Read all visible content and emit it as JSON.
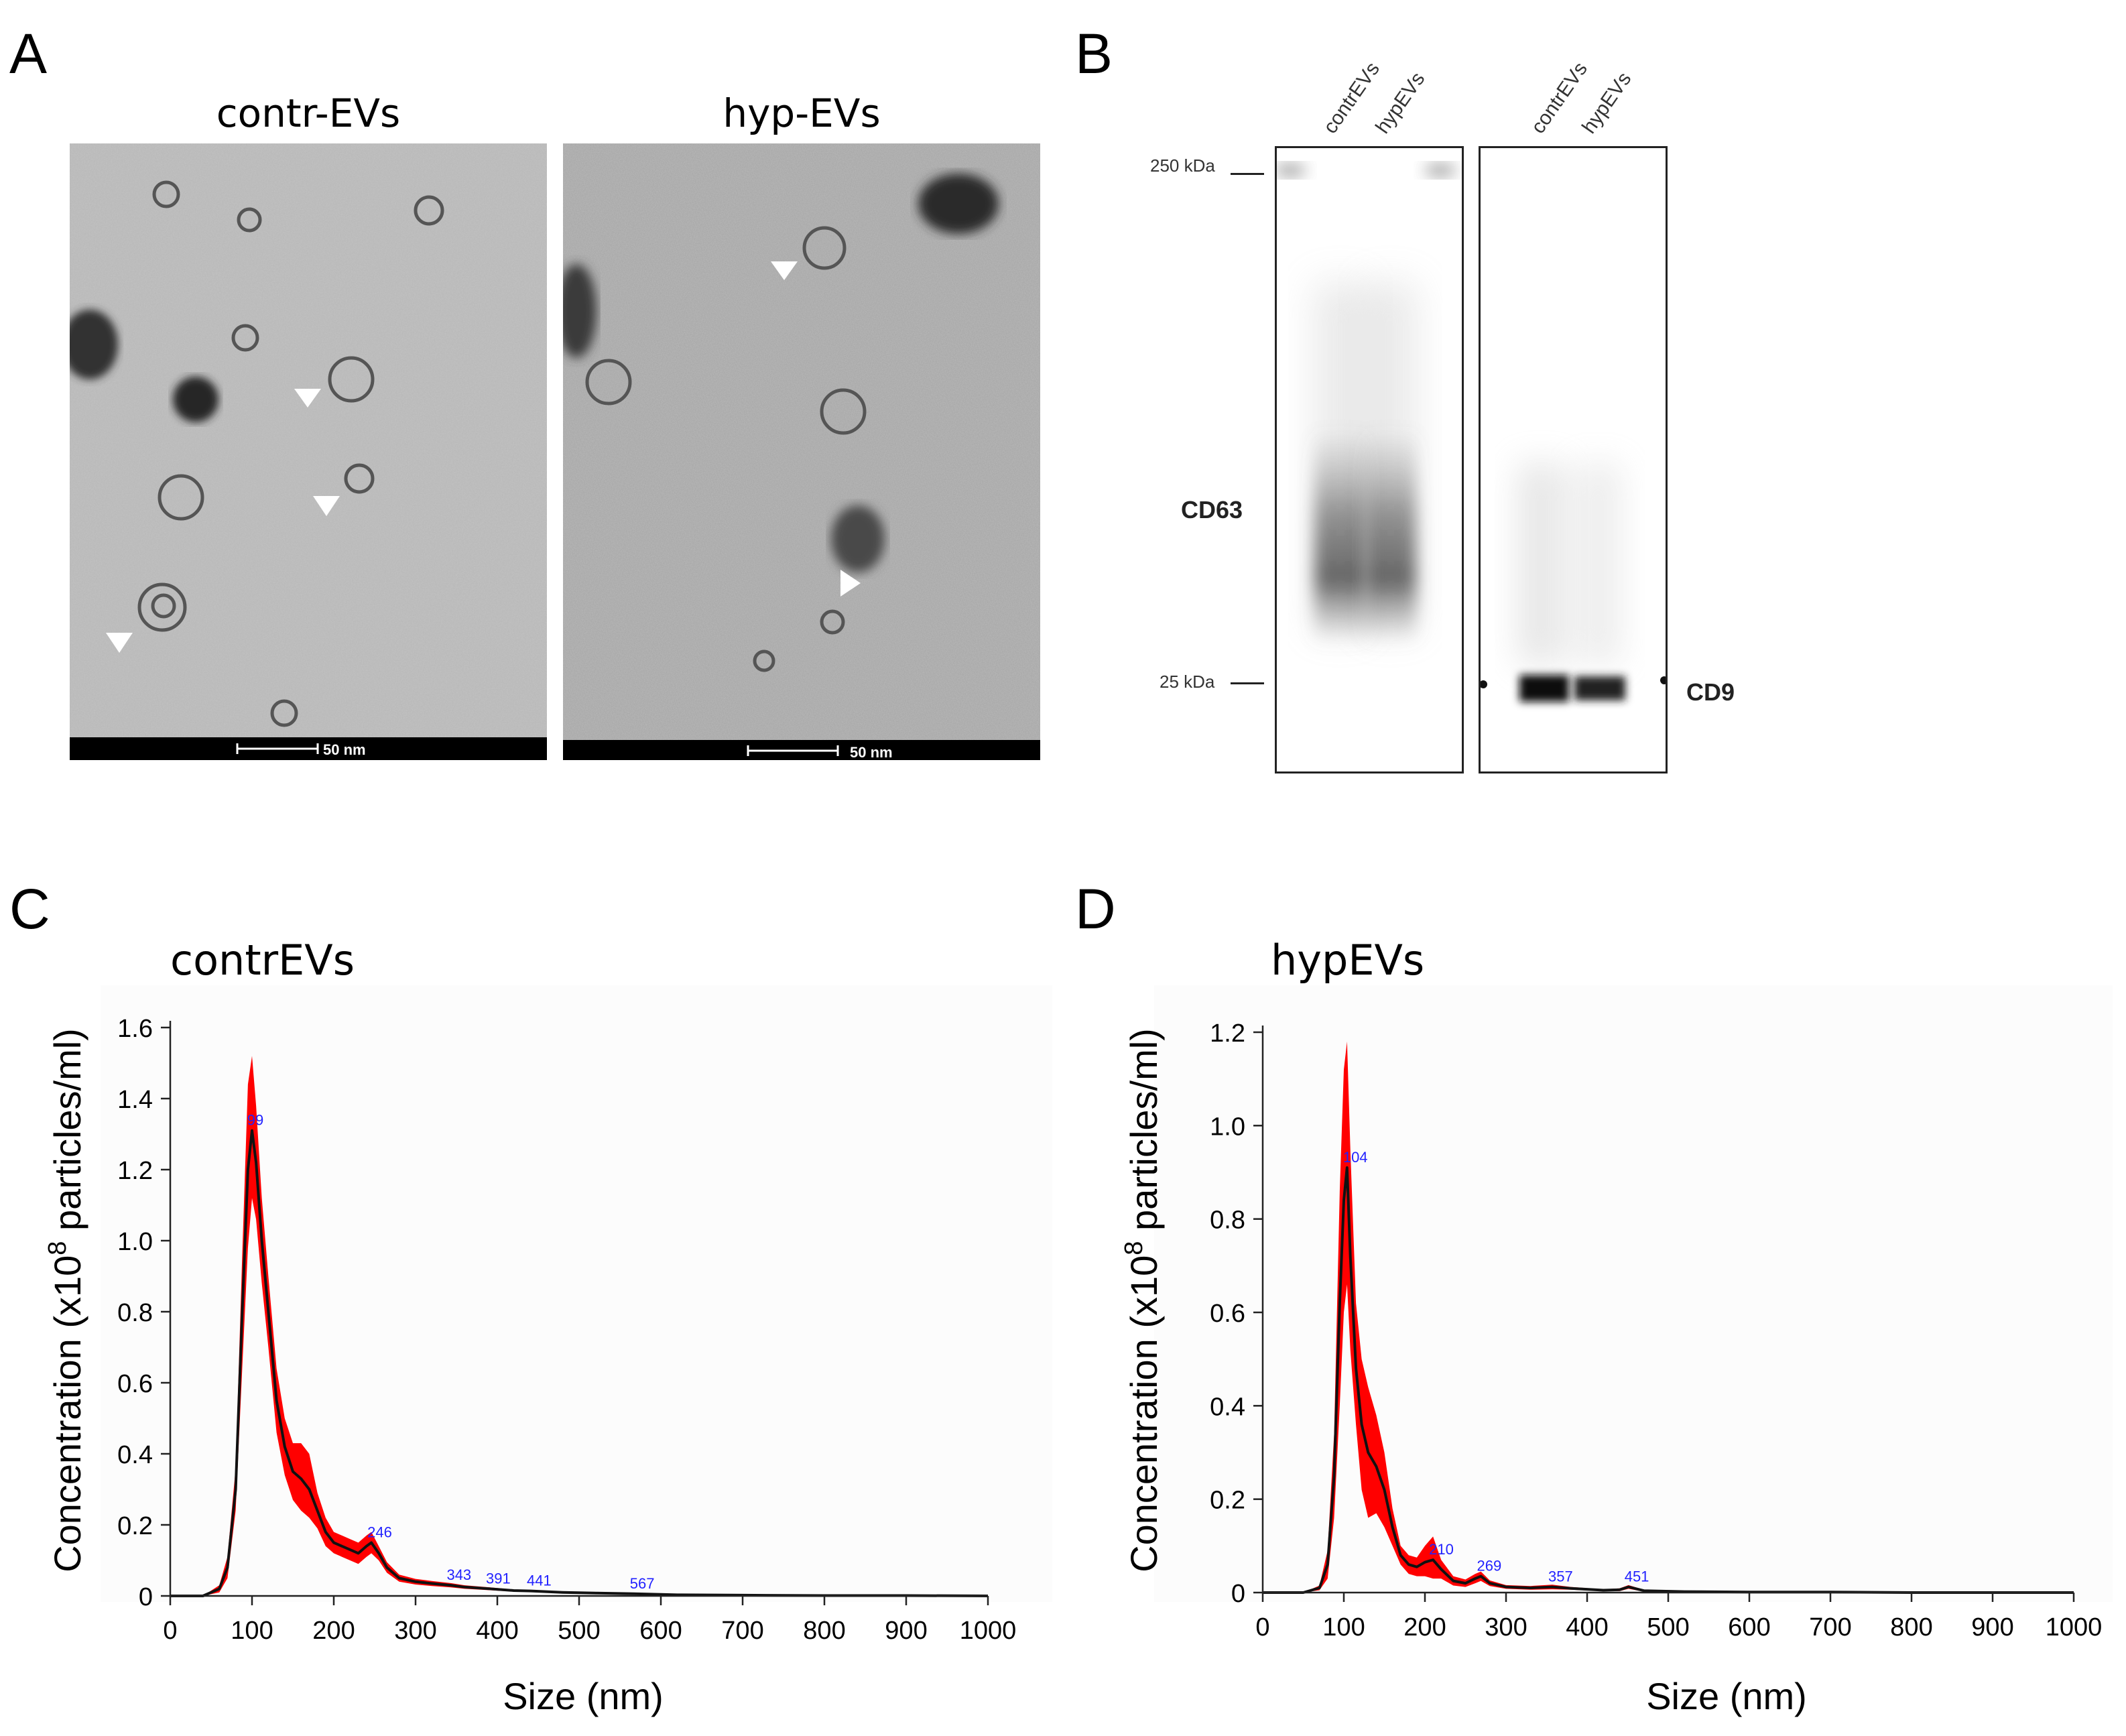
{
  "panels": {
    "A": {
      "letter": "A",
      "images": [
        {
          "title": "contr-EVs",
          "scale_bar": "50 nm"
        },
        {
          "title": "hyp-EVs",
          "scale_bar": "50 nm"
        }
      ]
    },
    "B": {
      "letter": "B",
      "lanes_left": [
        "contrEVs",
        "hypEVs"
      ],
      "lanes_right": [
        "contrEVs",
        "hypEVs"
      ],
      "markers": [
        "250 kDa",
        "25 kDa"
      ],
      "proteins": [
        "CD63",
        "CD9"
      ]
    },
    "C": {
      "letter": "C",
      "title": "contrEVs"
    },
    "D": {
      "letter": "D",
      "title": "hypEVs"
    }
  },
  "chart_data": [
    {
      "type": "line",
      "title": "contrEVs",
      "xlabel": "Size (nm)",
      "ylabel": "Concentration (x10^8 particles/ml)",
      "xlim": [
        0,
        1000
      ],
      "ylim": [
        0,
        1.6
      ],
      "xticks": [
        0,
        100,
        200,
        300,
        400,
        500,
        600,
        700,
        800,
        900,
        1000
      ],
      "yticks": [
        "0",
        "0.2",
        "0.4",
        "0.6",
        "0.8",
        "1.0",
        "1.2",
        "1.4",
        "1.6"
      ],
      "series": [
        {
          "x": [
            0,
            40,
            60,
            70,
            80,
            88,
            95,
            100,
            105,
            112,
            120,
            130,
            140,
            150,
            160,
            170,
            180,
            190,
            200,
            210,
            220,
            230,
            240,
            246,
            255,
            265,
            280,
            300,
            320,
            343,
            360,
            391,
            420,
            441,
            480,
            520,
            567,
            620,
            700,
            800,
            900,
            1000
          ],
          "y": [
            0,
            0,
            0.02,
            0.08,
            0.3,
            0.8,
            1.2,
            1.31,
            1.22,
            1.0,
            0.8,
            0.55,
            0.42,
            0.35,
            0.33,
            0.3,
            0.24,
            0.18,
            0.15,
            0.14,
            0.13,
            0.12,
            0.14,
            0.15,
            0.12,
            0.08,
            0.05,
            0.04,
            0.035,
            0.03,
            0.025,
            0.02,
            0.015,
            0.014,
            0.01,
            0.008,
            0.006,
            0.003,
            0.002,
            0.001,
            0.001,
            0
          ],
          "y_upper": [
            0,
            0,
            0.03,
            0.11,
            0.36,
            0.96,
            1.44,
            1.52,
            1.38,
            1.12,
            0.9,
            0.64,
            0.5,
            0.43,
            0.43,
            0.4,
            0.29,
            0.22,
            0.18,
            0.17,
            0.16,
            0.15,
            0.17,
            0.18,
            0.14,
            0.095,
            0.06,
            0.048,
            0.042,
            0.036,
            0.03,
            0.024,
            0.018,
            0.017,
            0.012,
            0.01,
            0.008,
            0.004,
            0.003,
            0.002,
            0.002,
            0
          ],
          "y_lower": [
            0,
            0,
            0.01,
            0.05,
            0.24,
            0.64,
            0.98,
            1.12,
            1.06,
            0.88,
            0.7,
            0.46,
            0.34,
            0.27,
            0.24,
            0.22,
            0.19,
            0.14,
            0.12,
            0.11,
            0.1,
            0.09,
            0.11,
            0.12,
            0.1,
            0.065,
            0.04,
            0.032,
            0.028,
            0.024,
            0.02,
            0.016,
            0.012,
            0.011,
            0.008,
            0.006,
            0.004,
            0.002,
            0.001,
            0,
            0,
            0
          ]
        }
      ],
      "peak_labels": [
        {
          "x": 99,
          "y": 1.31,
          "label": "99"
        },
        {
          "x": 246,
          "y": 0.15,
          "label": "246"
        },
        {
          "x": 343,
          "y": 0.03,
          "label": "343"
        },
        {
          "x": 391,
          "y": 0.02,
          "label": "391"
        },
        {
          "x": 441,
          "y": 0.014,
          "label": "441"
        },
        {
          "x": 567,
          "y": 0.006,
          "label": "567"
        }
      ],
      "line_color": "#111111",
      "band_color": "#ff0000",
      "label_color": "#2222ff"
    },
    {
      "type": "line",
      "title": "hypEVs",
      "xlabel": "Size (nm)",
      "ylabel": "Concentration (x10^8 particles/ml)",
      "xlim": [
        0,
        1000
      ],
      "ylim": [
        0,
        1.2
      ],
      "xticks": [
        0,
        100,
        200,
        300,
        400,
        500,
        600,
        700,
        800,
        900,
        1000
      ],
      "yticks": [
        "0",
        "0.2",
        "0.4",
        "0.6",
        "0.8",
        "1.0",
        "1.2"
      ],
      "series": [
        {
          "x": [
            0,
            50,
            70,
            80,
            88,
            95,
            100,
            104,
            108,
            115,
            122,
            130,
            140,
            150,
            160,
            170,
            180,
            190,
            200,
            210,
            220,
            235,
            250,
            262,
            269,
            280,
            300,
            330,
            357,
            380,
            420,
            440,
            451,
            470,
            520,
            600,
            700,
            800,
            900,
            1000
          ],
          "y": [
            0,
            0,
            0.01,
            0.06,
            0.25,
            0.62,
            0.84,
            0.91,
            0.72,
            0.48,
            0.36,
            0.3,
            0.27,
            0.22,
            0.14,
            0.08,
            0.06,
            0.055,
            0.065,
            0.07,
            0.05,
            0.025,
            0.02,
            0.03,
            0.035,
            0.02,
            0.012,
            0.01,
            0.012,
            0.009,
            0.005,
            0.006,
            0.012,
            0.004,
            0.002,
            0.001,
            0.001,
            0,
            0,
            0
          ],
          "y_upper": [
            0,
            0,
            0.015,
            0.09,
            0.34,
            0.86,
            1.12,
            1.18,
            0.95,
            0.62,
            0.5,
            0.44,
            0.38,
            0.3,
            0.18,
            0.1,
            0.08,
            0.075,
            0.1,
            0.12,
            0.07,
            0.035,
            0.028,
            0.04,
            0.045,
            0.026,
            0.016,
            0.014,
            0.017,
            0.012,
            0.007,
            0.009,
            0.016,
            0.006,
            0.003,
            0.002,
            0.002,
            0.001,
            0.001,
            0
          ],
          "y_lower": [
            0,
            0,
            0.005,
            0.03,
            0.16,
            0.4,
            0.6,
            0.66,
            0.52,
            0.36,
            0.22,
            0.16,
            0.17,
            0.14,
            0.1,
            0.06,
            0.04,
            0.035,
            0.035,
            0.03,
            0.03,
            0.015,
            0.012,
            0.02,
            0.025,
            0.014,
            0.008,
            0.006,
            0.007,
            0.006,
            0.003,
            0.003,
            0.008,
            0.002,
            0.001,
            0,
            0,
            0,
            0,
            0
          ]
        }
      ],
      "peak_labels": [
        {
          "x": 104,
          "y": 0.91,
          "label": "104"
        },
        {
          "x": 210,
          "y": 0.07,
          "label": "210"
        },
        {
          "x": 269,
          "y": 0.035,
          "label": "269"
        },
        {
          "x": 357,
          "y": 0.012,
          "label": "357"
        },
        {
          "x": 451,
          "y": 0.012,
          "label": "451"
        }
      ],
      "line_color": "#111111",
      "band_color": "#ff0000",
      "label_color": "#2222ff"
    }
  ]
}
